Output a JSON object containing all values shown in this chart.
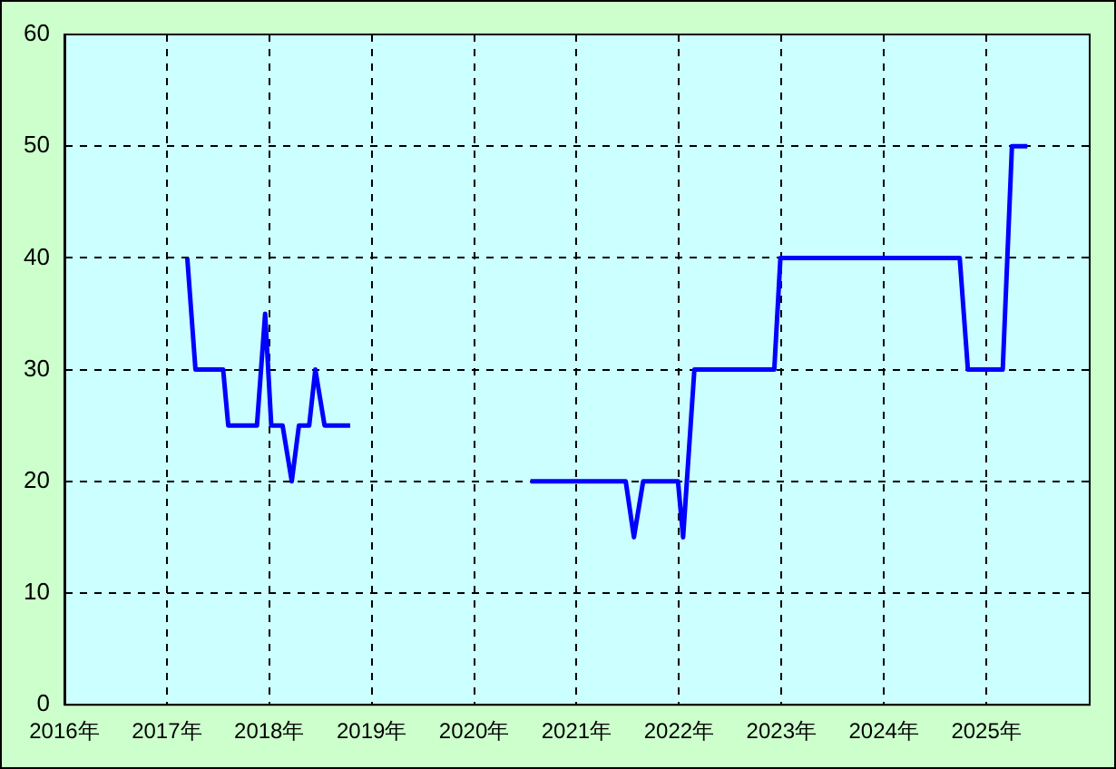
{
  "chart_data": {
    "type": "line",
    "x": [
      2017.2,
      2017.28,
      2017.55,
      2017.6,
      2017.88,
      2017.96,
      2018.02,
      2018.13,
      2018.22,
      2018.29,
      2018.39,
      2018.45,
      2018.54,
      2018.79,
      2019.6,
      2020.55,
      2021.48,
      2021.56,
      2021.65,
      2021.99,
      2022.04,
      2022.15,
      2022.93,
      2022.99,
      2024.74,
      2024.82,
      2025.16,
      2025.25,
      2025.4
    ],
    "series": [
      {
        "color": "#0000ff",
        "values": [
          40,
          30,
          30,
          25,
          25,
          35,
          25,
          25,
          20,
          25,
          25,
          30,
          25,
          25,
          null,
          20,
          20,
          15,
          20,
          20,
          15,
          30,
          30,
          40,
          40,
          30,
          30,
          50,
          50
        ]
      }
    ],
    "xlim": [
      2016,
      2026
    ],
    "xticks": [
      {
        "value": 2016,
        "label": "2016年"
      },
      {
        "value": 2017,
        "label": "2017年"
      },
      {
        "value": 2018,
        "label": "2018年"
      },
      {
        "value": 2019,
        "label": "2019年"
      },
      {
        "value": 2020,
        "label": "2020年"
      },
      {
        "value": 2021,
        "label": "2021年"
      },
      {
        "value": 2022,
        "label": "2022年"
      },
      {
        "value": 2023,
        "label": "2023年"
      },
      {
        "value": 2024,
        "label": "2024年"
      },
      {
        "value": 2025,
        "label": "2025年"
      }
    ],
    "ylim": [
      0,
      60
    ],
    "yticks": [
      0,
      10,
      20,
      30,
      40,
      50,
      60
    ],
    "grid": true,
    "legend": false,
    "marker": "none",
    "line_style": "solid"
  }
}
